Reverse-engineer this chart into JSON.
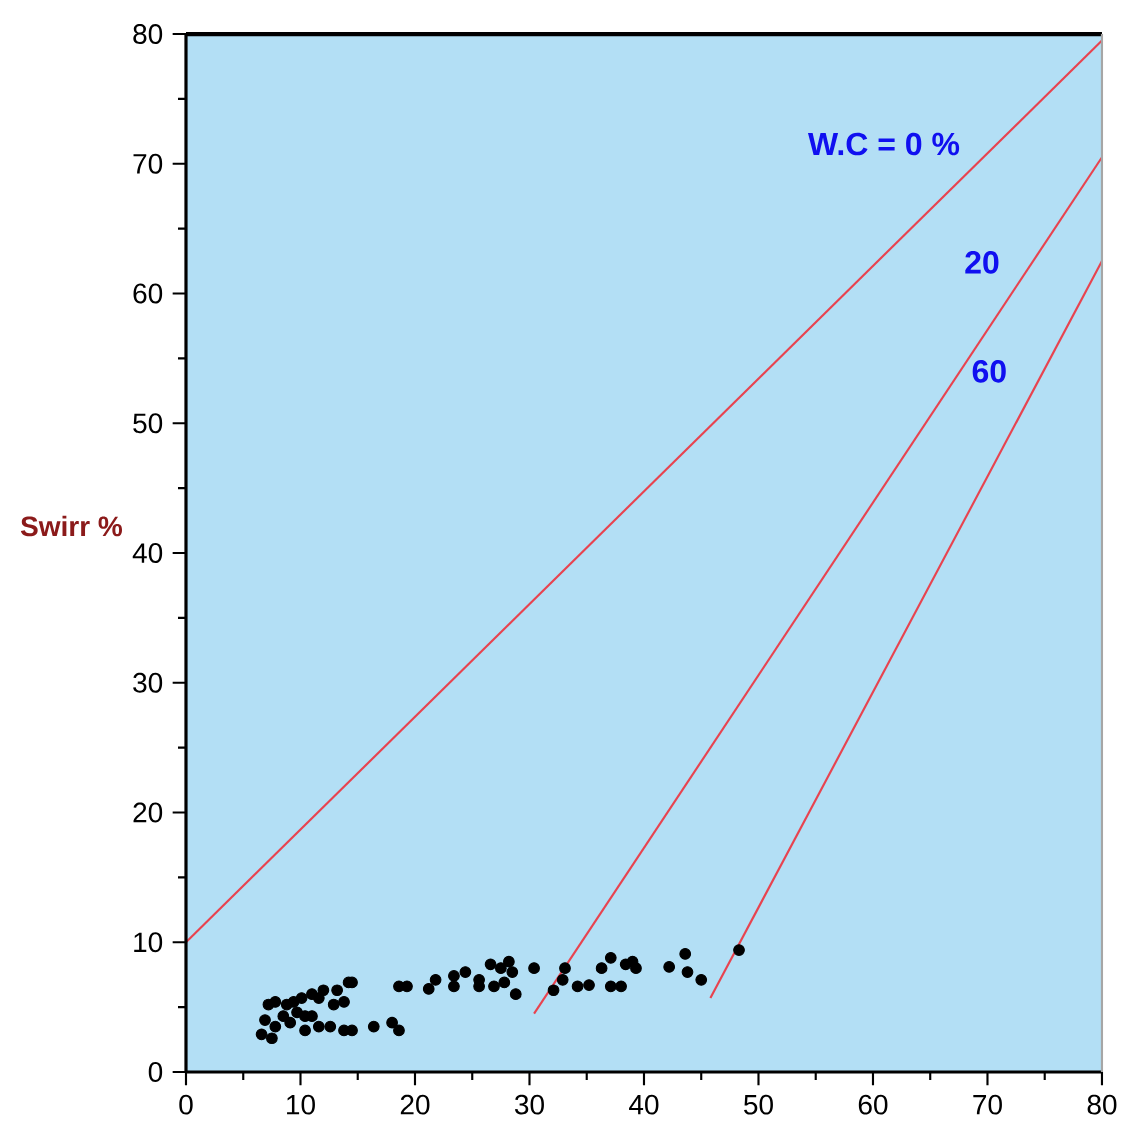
{
  "chart_data": {
    "type": "scatter",
    "ylabel": "Swirr %",
    "xlim": [
      0,
      80
    ],
    "ylim": [
      0,
      80
    ],
    "xticks": [
      0,
      10,
      20,
      30,
      40,
      50,
      60,
      70,
      80
    ],
    "yticks": [
      0,
      10,
      20,
      30,
      40,
      50,
      60,
      70,
      80
    ],
    "grid": false,
    "series": [
      {
        "color": "#000000",
        "marker": "circle",
        "x": [
          6.6,
          7.5,
          7.2,
          7.8,
          8.5,
          9.1,
          9.4,
          10.1,
          10.4,
          10.4,
          11.0,
          11.6,
          12.0,
          11.6,
          12.6,
          12.9,
          13.2,
          13.8,
          14.2,
          14.5,
          13.8,
          14.5,
          16.4,
          18.0,
          18.6,
          18.6,
          19.3,
          21.2,
          21.8,
          23.4,
          23.4,
          24.4,
          25.6,
          25.6,
          26.6,
          26.9,
          27.5,
          27.8,
          28.2,
          28.5,
          28.8,
          30.4,
          32.1,
          32.9,
          33.1,
          34.2,
          35.2,
          36.3,
          37.1,
          37.1,
          38.0,
          38.4,
          39.0,
          39.3,
          42.2,
          43.6,
          43.8,
          45.0,
          48.3,
          6.9,
          7.8,
          8.8,
          9.7,
          11.0
        ],
        "values": [
          2.9,
          2.6,
          5.2,
          5.4,
          4.3,
          3.8,
          5.4,
          5.7,
          4.3,
          3.2,
          6.0,
          5.7,
          6.3,
          3.5,
          3.5,
          5.2,
          6.3,
          5.4,
          6.9,
          6.9,
          3.2,
          3.2,
          3.5,
          3.8,
          3.2,
          6.6,
          6.6,
          6.4,
          7.1,
          6.6,
          7.4,
          7.7,
          7.1,
          6.6,
          8.3,
          6.6,
          8.0,
          6.9,
          8.5,
          7.7,
          6.0,
          8.0,
          6.3,
          7.1,
          8.0,
          6.6,
          6.7,
          8.0,
          8.8,
          6.6,
          6.6,
          8.3,
          8.5,
          8.0,
          8.1,
          9.1,
          7.7,
          7.1,
          9.4,
          4.0,
          3.5,
          5.2,
          4.6,
          4.3
        ]
      },
      {
        "type": "line",
        "color": "#e8434f",
        "marker": "none",
        "x": [
          0,
          80
        ],
        "values": [
          10,
          79.5
        ]
      },
      {
        "type": "line",
        "color": "#e8434f",
        "marker": "none",
        "x": [
          30.4,
          80
        ],
        "values": [
          4.5,
          70.5
        ]
      },
      {
        "type": "line",
        "color": "#e8434f",
        "marker": "none",
        "x": [
          45.8,
          80
        ],
        "values": [
          5.7,
          62.5
        ]
      }
    ],
    "annotations": [
      "W.C = 0 %",
      "20",
      "60"
    ]
  }
}
